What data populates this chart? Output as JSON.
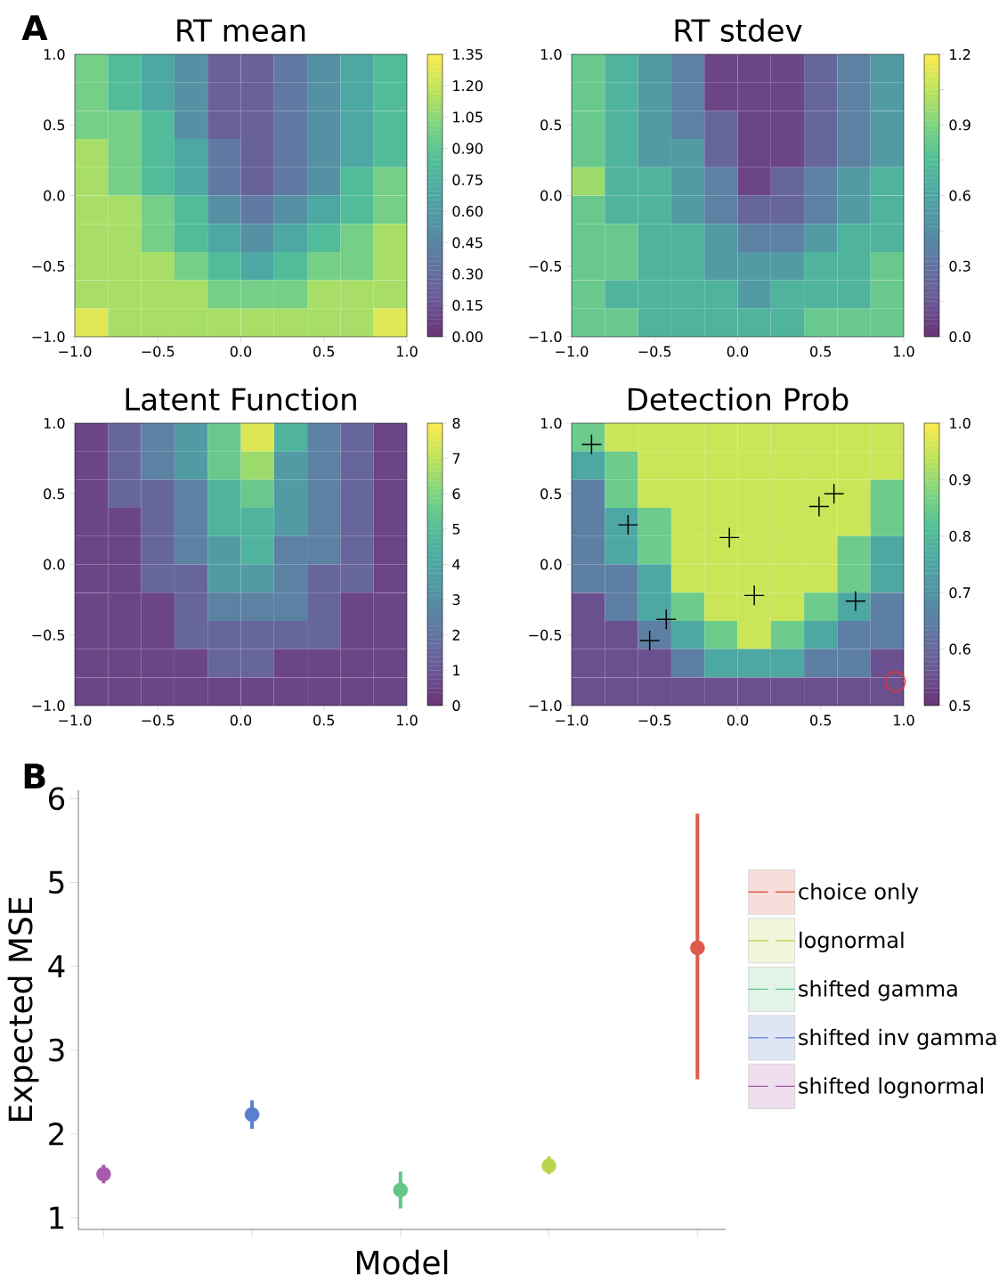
{
  "chart_data": [
    {
      "type": "heatmap",
      "title": "RT mean",
      "annotations": [
        "A"
      ],
      "x": [
        -0.9,
        -0.7,
        -0.5,
        -0.3,
        -0.1,
        0.1,
        0.3,
        0.5,
        0.7,
        0.9
      ],
      "y": [
        0.9,
        0.7,
        0.5,
        0.3,
        0.1,
        -0.1,
        -0.3,
        -0.5,
        -0.7,
        -0.9
      ],
      "xlim": [
        -1,
        1
      ],
      "ylim": [
        -1,
        1
      ],
      "xticks": [
        {
          "value": -1,
          "label": "−1.0"
        },
        {
          "value": -0.5,
          "label": "−0.5"
        },
        {
          "value": 0,
          "label": "0.0"
        },
        {
          "value": 0.5,
          "label": "0.5"
        },
        {
          "value": 1,
          "label": "1.0"
        }
      ],
      "yticks": [
        {
          "value": -1,
          "label": "−1.0"
        },
        {
          "value": -0.5,
          "label": "−0.5"
        },
        {
          "value": 0,
          "label": "0.0"
        },
        {
          "value": 0.5,
          "label": "0.5"
        },
        {
          "value": 1,
          "label": "1.0"
        }
      ],
      "clim": [
        0,
        1.35
      ],
      "cticks": [
        {
          "value": 0,
          "label": "0.00"
        },
        {
          "value": 0.15,
          "label": "0.15"
        },
        {
          "value": 0.3,
          "label": "0.30"
        },
        {
          "value": 0.45,
          "label": "0.45"
        },
        {
          "value": 0.6,
          "label": "0.60"
        },
        {
          "value": 0.75,
          "label": "0.75"
        },
        {
          "value": 0.9,
          "label": "0.90"
        },
        {
          "value": 1.05,
          "label": "1.05"
        },
        {
          "value": 1.2,
          "label": "1.20"
        },
        {
          "value": 1.35,
          "label": "1.35"
        }
      ],
      "cells": [
        [
          0.975,
          0.825,
          0.675,
          0.525,
          0.225,
          0.225,
          0.375,
          0.525,
          0.675,
          0.825
        ],
        [
          0.975,
          0.825,
          0.675,
          0.525,
          0.225,
          0.225,
          0.375,
          0.525,
          0.675,
          0.825
        ],
        [
          0.975,
          0.975,
          0.825,
          0.525,
          0.225,
          0.225,
          0.375,
          0.525,
          0.675,
          0.825
        ],
        [
          1.125,
          0.975,
          0.825,
          0.675,
          0.375,
          0.225,
          0.375,
          0.525,
          0.675,
          0.825
        ],
        [
          1.125,
          0.975,
          0.825,
          0.675,
          0.375,
          0.225,
          0.375,
          0.525,
          0.825,
          0.975
        ],
        [
          1.125,
          1.125,
          0.975,
          0.825,
          0.525,
          0.375,
          0.525,
          0.675,
          0.825,
          0.975
        ],
        [
          1.125,
          1.125,
          0.975,
          0.825,
          0.675,
          0.525,
          0.675,
          0.825,
          0.975,
          1.125
        ],
        [
          1.125,
          1.125,
          1.125,
          0.975,
          0.825,
          0.675,
          0.825,
          0.975,
          0.975,
          1.125
        ],
        [
          1.125,
          1.125,
          1.125,
          1.125,
          0.975,
          0.975,
          0.975,
          1.125,
          1.125,
          1.125
        ],
        [
          1.275,
          1.125,
          1.125,
          1.125,
          1.125,
          1.125,
          1.125,
          1.125,
          1.125,
          1.275
        ]
      ]
    },
    {
      "type": "heatmap",
      "title": "RT stdev",
      "x": [
        -0.9,
        -0.7,
        -0.5,
        -0.3,
        -0.1,
        0.1,
        0.3,
        0.5,
        0.7,
        0.9
      ],
      "y": [
        0.9,
        0.7,
        0.5,
        0.3,
        0.1,
        -0.1,
        -0.3,
        -0.5,
        -0.7,
        -0.9
      ],
      "xlim": [
        -1,
        1
      ],
      "ylim": [
        -1,
        1
      ],
      "xticks": [
        {
          "value": -1,
          "label": "−1.0"
        },
        {
          "value": -0.5,
          "label": "−0.5"
        },
        {
          "value": 0,
          "label": "0.0"
        },
        {
          "value": 0.5,
          "label": "0.5"
        },
        {
          "value": 1,
          "label": "1.0"
        }
      ],
      "yticks": [
        {
          "value": -1,
          "label": "−1.0"
        },
        {
          "value": -0.5,
          "label": "−0.5"
        },
        {
          "value": 0,
          "label": "0.0"
        },
        {
          "value": 0.5,
          "label": "0.5"
        },
        {
          "value": 1,
          "label": "1.0"
        }
      ],
      "clim": [
        0,
        1.2
      ],
      "cticks": [
        {
          "value": 0,
          "label": "0.0"
        },
        {
          "value": 0.15,
          "label": null
        },
        {
          "value": 0.3,
          "label": "0.3"
        },
        {
          "value": 0.45,
          "label": null
        },
        {
          "value": 0.6,
          "label": "0.6"
        },
        {
          "value": 0.75,
          "label": null
        },
        {
          "value": 0.9,
          "label": "0.9"
        },
        {
          "value": 1.05,
          "label": null
        },
        {
          "value": 1.2,
          "label": "1.2"
        }
      ],
      "cells": [
        [
          0.825,
          0.675,
          0.525,
          0.375,
          0.075,
          0.075,
          0.075,
          0.225,
          0.375,
          0.525
        ],
        [
          0.825,
          0.675,
          0.525,
          0.375,
          0.075,
          0.075,
          0.075,
          0.225,
          0.375,
          0.525
        ],
        [
          0.825,
          0.675,
          0.525,
          0.375,
          0.225,
          0.075,
          0.075,
          0.225,
          0.375,
          0.525
        ],
        [
          0.825,
          0.675,
          0.525,
          0.525,
          0.225,
          0.075,
          0.075,
          0.225,
          0.375,
          0.525
        ],
        [
          0.975,
          0.675,
          0.675,
          0.525,
          0.375,
          0.075,
          0.225,
          0.375,
          0.525,
          0.675
        ],
        [
          0.825,
          0.675,
          0.675,
          0.525,
          0.375,
          0.225,
          0.225,
          0.375,
          0.525,
          0.675
        ],
        [
          0.825,
          0.825,
          0.675,
          0.675,
          0.525,
          0.375,
          0.375,
          0.525,
          0.675,
          0.675
        ],
        [
          0.825,
          0.825,
          0.675,
          0.675,
          0.525,
          0.525,
          0.525,
          0.675,
          0.675,
          0.825
        ],
        [
          0.825,
          0.675,
          0.675,
          0.675,
          0.675,
          0.525,
          0.675,
          0.675,
          0.675,
          0.825
        ],
        [
          0.825,
          0.825,
          0.675,
          0.675,
          0.675,
          0.675,
          0.675,
          0.825,
          0.825,
          0.825
        ]
      ]
    },
    {
      "type": "heatmap",
      "title": "Latent Function",
      "x": [
        -0.9,
        -0.7,
        -0.5,
        -0.3,
        -0.1,
        0.1,
        0.3,
        0.5,
        0.7,
        0.9
      ],
      "y": [
        0.9,
        0.7,
        0.5,
        0.3,
        0.1,
        -0.1,
        -0.3,
        -0.5,
        -0.7,
        -0.9
      ],
      "xlim": [
        -1,
        1
      ],
      "ylim": [
        -1,
        1
      ],
      "xticks": [
        {
          "value": -1,
          "label": "−1.0"
        },
        {
          "value": -0.5,
          "label": "−0.5"
        },
        {
          "value": 0,
          "label": "0.0"
        },
        {
          "value": 0.5,
          "label": "0.5"
        },
        {
          "value": 1,
          "label": "1.0"
        }
      ],
      "yticks": [
        {
          "value": -1,
          "label": "−1.0"
        },
        {
          "value": -0.5,
          "label": "−0.5"
        },
        {
          "value": 0,
          "label": "0.0"
        },
        {
          "value": 0.5,
          "label": "0.5"
        },
        {
          "value": 1,
          "label": "1.0"
        }
      ],
      "clim": [
        0,
        8
      ],
      "cticks": [
        0,
        1,
        2,
        3,
        4,
        5,
        6,
        7,
        8
      ],
      "cells": [
        [
          0.5,
          1.5,
          2.5,
          3.5,
          5.5,
          7.5,
          4.5,
          2.5,
          1.5,
          0.5
        ],
        [
          0.5,
          1.5,
          2.5,
          3.5,
          5.5,
          6.5,
          3.5,
          2.5,
          1.5,
          0.5
        ],
        [
          0.5,
          1.5,
          1.5,
          2.5,
          4.5,
          5.5,
          3.5,
          2.5,
          1.5,
          0.5
        ],
        [
          0.5,
          0.5,
          1.5,
          2.5,
          4.5,
          4.5,
          3.5,
          2.5,
          1.5,
          0.5
        ],
        [
          0.5,
          0.5,
          1.5,
          2.5,
          3.5,
          4.5,
          2.5,
          2.5,
          1.5,
          0.5
        ],
        [
          0.5,
          0.5,
          1.5,
          1.5,
          3.5,
          3.5,
          2.5,
          1.5,
          1.5,
          0.5
        ],
        [
          0.5,
          0.5,
          0.5,
          1.5,
          2.5,
          2.5,
          2.5,
          1.5,
          0.5,
          0.5
        ],
        [
          0.5,
          0.5,
          0.5,
          1.5,
          1.5,
          1.5,
          1.5,
          1.5,
          0.5,
          0.5
        ],
        [
          0.5,
          0.5,
          0.5,
          0.5,
          1.5,
          1.5,
          0.5,
          0.5,
          0.5,
          0.5
        ],
        [
          0.5,
          0.5,
          0.5,
          0.5,
          0.5,
          0.5,
          0.5,
          0.5,
          0.5,
          0.5
        ]
      ]
    },
    {
      "type": "heatmap",
      "title": "Detection Prob",
      "x": [
        -0.9,
        -0.7,
        -0.5,
        -0.3,
        -0.1,
        0.1,
        0.3,
        0.5,
        0.7,
        0.9
      ],
      "y": [
        0.9,
        0.7,
        0.5,
        0.3,
        0.1,
        -0.1,
        -0.3,
        -0.5,
        -0.7,
        -0.9
      ],
      "xlim": [
        -1,
        1
      ],
      "ylim": [
        -1,
        1
      ],
      "xticks": [
        {
          "value": -1,
          "label": "−1.0"
        },
        {
          "value": -0.5,
          "label": "−0.5"
        },
        {
          "value": 0,
          "label": "0.0"
        },
        {
          "value": 0.5,
          "label": "0.5"
        },
        {
          "value": 1,
          "label": "1.0"
        }
      ],
      "yticks": [
        {
          "value": -1,
          "label": "−1.0"
        },
        {
          "value": -0.5,
          "label": "−0.5"
        },
        {
          "value": 0,
          "label": "0.0"
        },
        {
          "value": 0.5,
          "label": "0.5"
        },
        {
          "value": 1,
          "label": "1.0"
        }
      ],
      "clim": [
        0.5,
        1.0
      ],
      "cticks": [
        {
          "value": 0.5,
          "label": "0.5"
        },
        {
          "value": 0.6,
          "label": "0.6"
        },
        {
          "value": 0.7,
          "label": "0.7"
        },
        {
          "value": 0.8,
          "label": "0.8"
        },
        {
          "value": 0.9,
          "label": "0.9"
        },
        {
          "value": 1.0,
          "label": "1.0"
        }
      ],
      "cells": [
        [
          0.85,
          0.95,
          0.95,
          0.95,
          0.95,
          0.95,
          0.95,
          0.95,
          0.95,
          0.95
        ],
        [
          0.75,
          0.85,
          0.95,
          0.95,
          0.95,
          0.95,
          0.95,
          0.95,
          0.95,
          0.95
        ],
        [
          0.65,
          0.85,
          0.95,
          0.95,
          0.95,
          0.95,
          0.95,
          0.95,
          0.95,
          0.85
        ],
        [
          0.65,
          0.75,
          0.85,
          0.95,
          0.95,
          0.95,
          0.95,
          0.95,
          0.95,
          0.85
        ],
        [
          0.65,
          0.75,
          0.85,
          0.95,
          0.95,
          0.95,
          0.95,
          0.95,
          0.85,
          0.75
        ],
        [
          0.65,
          0.65,
          0.75,
          0.95,
          0.95,
          0.95,
          0.95,
          0.95,
          0.85,
          0.75
        ],
        [
          0.55,
          0.65,
          0.75,
          0.85,
          0.95,
          0.95,
          0.95,
          0.85,
          0.75,
          0.65
        ],
        [
          0.55,
          0.55,
          0.65,
          0.75,
          0.85,
          0.95,
          0.85,
          0.75,
          0.65,
          0.65
        ],
        [
          0.55,
          0.55,
          0.55,
          0.65,
          0.75,
          0.75,
          0.75,
          0.65,
          0.65,
          0.55
        ],
        [
          0.55,
          0.55,
          0.55,
          0.55,
          0.55,
          0.55,
          0.55,
          0.55,
          0.55,
          0.55
        ]
      ],
      "series": [
        {
          "type": "scatter",
          "marker": "cross",
          "color": "#000000",
          "x": [
            -0.88,
            -0.66,
            -0.43,
            -0.53,
            -0.05,
            0.1,
            0.49,
            0.58,
            0.71
          ],
          "values": [
            0.85,
            0.28,
            -0.39,
            -0.54,
            0.19,
            -0.22,
            0.41,
            0.5,
            -0.26
          ]
        },
        {
          "type": "scatter",
          "marker": "circle",
          "color": "#e8312f",
          "x": [
            0.95
          ],
          "values": [
            -0.83
          ]
        }
      ]
    },
    {
      "type": "scatter",
      "annotations": [
        "B"
      ],
      "xlabel": "Model",
      "ylabel": "Expected MSE",
      "categories": [
        null,
        null,
        null,
        null,
        null
      ],
      "tick_labels": "y",
      "ylim": [
        0.86,
        6.1
      ],
      "yticks": [
        1,
        2,
        3,
        4,
        5,
        6
      ],
      "marker": "circle",
      "legend": "right",
      "grid": false,
      "series": [
        {
          "name": "choice only",
          "color": "#dd5a4c",
          "values": [
            null,
            null,
            null,
            null,
            4.22
          ],
          "errors": [
            null,
            null,
            null,
            null,
            [
              2.65,
              5.82
            ]
          ]
        },
        {
          "name": "lognormal",
          "color": "#b9d44b",
          "values": [
            null,
            null,
            null,
            1.62,
            null
          ],
          "errors": [
            null,
            null,
            null,
            [
              1.52,
              1.73
            ],
            null
          ]
        },
        {
          "name": "shifted gamma",
          "color": "#62c689",
          "values": [
            null,
            null,
            1.33,
            null,
            null
          ],
          "errors": [
            null,
            null,
            [
              1.11,
              1.55
            ],
            null,
            null
          ]
        },
        {
          "name": "shifted inv gamma",
          "color": "#5b7fcf",
          "values": [
            null,
            2.23,
            null,
            null,
            null
          ],
          "errors": [
            null,
            [
              2.06,
              2.4
            ],
            null,
            null,
            null
          ]
        },
        {
          "name": "shifted lognormal",
          "color": "#a85aac",
          "values": [
            1.52,
            null,
            null,
            null,
            null
          ],
          "errors": [
            [
              1.41,
              1.63
            ],
            null,
            null,
            null,
            null
          ]
        }
      ]
    }
  ]
}
